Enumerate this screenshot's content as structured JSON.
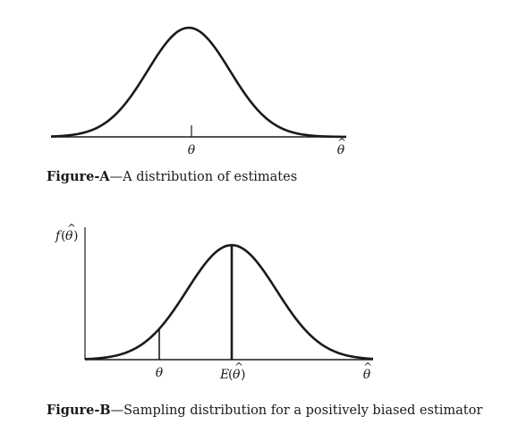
{
  "figure_a": {
    "caption_label": "Figure-A",
    "caption_dash": "—",
    "caption_text": "A distribution of estimates",
    "tick_label": "θ",
    "axis_label_base": "θ",
    "axis_label_hat": "^"
  },
  "figure_b": {
    "caption_label": "Figure-B",
    "caption_dash": "—",
    "caption_text": "Sampling distribution for a positively biased estimator",
    "y_label_f": "f",
    "y_label_open": "(",
    "y_label_theta": "θ",
    "y_label_hat": "^",
    "y_label_close": ")",
    "true_param_label": "θ",
    "expected_label_e": "E",
    "expected_label_open": "(",
    "expected_label_theta": "θ",
    "expected_label_hat": "^",
    "expected_label_close": ")",
    "axis_label_base": "θ",
    "axis_label_hat": "^"
  },
  "colors": {
    "ink": "#1a1a1a"
  }
}
